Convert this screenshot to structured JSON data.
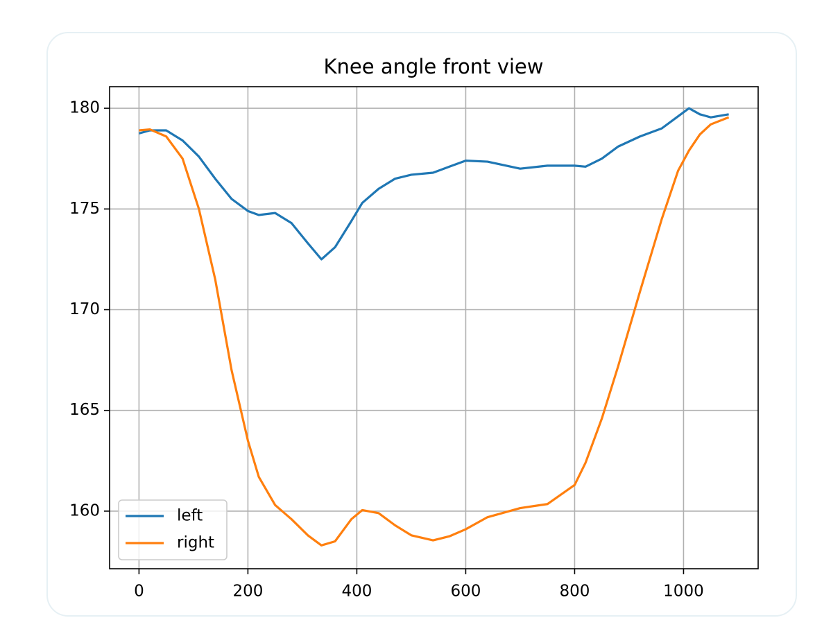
{
  "chart_data": {
    "type": "line",
    "title": "Knee angle front view",
    "x": [
      0,
      20,
      50,
      80,
      110,
      140,
      170,
      200,
      220,
      250,
      280,
      310,
      335,
      360,
      390,
      410,
      440,
      470,
      500,
      540,
      570,
      600,
      640,
      700,
      750,
      800,
      820,
      850,
      880,
      920,
      960,
      990,
      1010,
      1030,
      1050,
      1083
    ],
    "series": [
      {
        "name": "left",
        "color": "#1f77b4",
        "values": [
          178.75,
          178.9,
          178.9,
          178.4,
          177.6,
          176.5,
          175.5,
          174.9,
          174.7,
          174.8,
          174.3,
          173.3,
          172.5,
          173.1,
          174.4,
          175.3,
          176.0,
          176.5,
          176.7,
          176.8,
          177.1,
          177.4,
          177.35,
          177.0,
          177.15,
          177.15,
          177.1,
          177.5,
          178.1,
          178.6,
          179.0,
          179.6,
          180.0,
          179.7,
          179.55,
          179.7
        ]
      },
      {
        "name": "right",
        "color": "#ff7f0e",
        "values": [
          178.9,
          178.95,
          178.6,
          177.5,
          175.0,
          171.5,
          167.0,
          163.5,
          161.7,
          160.3,
          159.6,
          158.8,
          158.3,
          158.5,
          159.6,
          160.05,
          159.9,
          159.3,
          158.8,
          158.55,
          158.75,
          159.1,
          159.7,
          160.15,
          160.35,
          161.3,
          162.4,
          164.6,
          167.2,
          170.9,
          174.5,
          176.9,
          177.9,
          178.7,
          179.2,
          179.55
        ]
      }
    ],
    "xlim": [
      -54,
      1137
    ],
    "ylim": [
      157.14,
      181.07
    ],
    "xticks": [
      0,
      200,
      400,
      600,
      800,
      1000
    ],
    "yticks": [
      160,
      165,
      170,
      175,
      180
    ],
    "grid": true,
    "legend": "lower left"
  }
}
